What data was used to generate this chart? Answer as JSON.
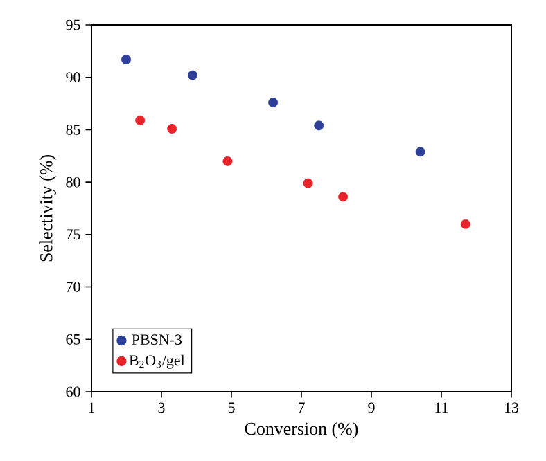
{
  "chart_data": {
    "type": "scatter",
    "xlabel": "Conversion (%)",
    "ylabel": "Selectivity (%)",
    "xlim": [
      1,
      13
    ],
    "xticks": [
      1,
      3,
      5,
      7,
      9,
      11,
      13
    ],
    "ylim": [
      60,
      95
    ],
    "yticks": [
      60,
      65,
      70,
      75,
      80,
      85,
      90,
      95
    ],
    "marker": "circle",
    "legend": "bottom left",
    "grid": false,
    "series": [
      {
        "name": "PBSN-3",
        "color": "#2e3f9a",
        "x": [
          1.99,
          3.89,
          6.19,
          7.5,
          10.4
        ],
        "values": [
          91.7,
          90.2,
          87.6,
          85.4,
          82.9
        ]
      },
      {
        "name": "B$_{2}$O$_{3}$/gel",
        "color": "#e8242a",
        "x": [
          2.39,
          3.3,
          4.89,
          7.19,
          8.19,
          11.69
        ],
        "values": [
          85.9,
          85.1,
          82.0,
          79.9,
          78.6,
          76.0
        ]
      }
    ]
  }
}
